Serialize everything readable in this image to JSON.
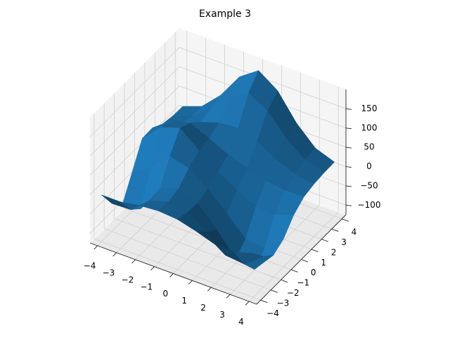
{
  "chart_data": {
    "type": "surface",
    "title": "Example 3",
    "color": "#1f77b4",
    "x": [
      -4,
      -3,
      -2,
      -1,
      0,
      1,
      2,
      3,
      4
    ],
    "y": [
      -4,
      -3,
      -2,
      -1,
      0,
      1,
      2,
      3,
      4
    ],
    "z": [
      [
        -4,
        -4,
        5,
        9,
        5,
        -8,
        -24,
        -26,
        -11
      ],
      [
        -52,
        -50,
        -9,
        7,
        -3,
        -36,
        -78,
        -83,
        -45
      ],
      [
        -86,
        -74,
        -5,
        14,
        -6,
        -55,
        -115,
        -123,
        -68
      ],
      [
        -25,
        8,
        53,
        40,
        5,
        -41,
        -89,
        -95,
        -52
      ],
      [
        37,
        84,
        100,
        59,
        22,
        -7,
        -31,
        -35,
        -17
      ],
      [
        38,
        74,
        86,
        65,
        41,
        24,
        9,
        2,
        4
      ],
      [
        22,
        42,
        63,
        79,
        83,
        66,
        38,
        18,
        11
      ],
      [
        16,
        32,
        70,
        122,
        147,
        120,
        66,
        29,
        14
      ],
      [
        15,
        33,
        80,
        146,
        180,
        146,
        80,
        33,
        15
      ]
    ],
    "xlim": [
      -4.4,
      4.4
    ],
    "ylim": [
      -4.4,
      4.4
    ],
    "zlim": [
      -125,
      200
    ],
    "xticks": [
      {
        "value": -4,
        "label": "−4"
      },
      {
        "value": -3,
        "label": "−3"
      },
      {
        "value": -2,
        "label": "−2"
      },
      {
        "value": -1,
        "label": "−1"
      },
      0,
      1,
      2,
      3,
      4
    ],
    "yticks": [
      {
        "value": -4,
        "label": "−4"
      },
      {
        "value": -3,
        "label": "−3"
      },
      {
        "value": -2,
        "label": "−2"
      },
      {
        "value": -1,
        "label": "−1"
      },
      0,
      1,
      2,
      3,
      4
    ],
    "zticks": [
      {
        "value": -100,
        "label": "−100"
      },
      {
        "value": -50,
        "label": "−50"
      },
      0,
      50,
      100,
      150
    ],
    "grid": true
  }
}
